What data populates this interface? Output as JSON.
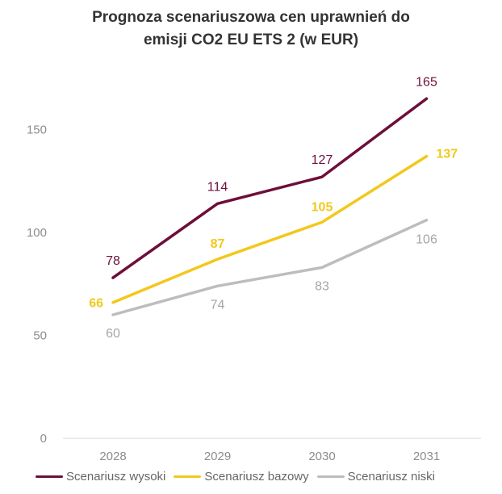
{
  "chart_data": {
    "type": "line",
    "title_lines": [
      "Prognoza scenariuszowa cen uprawnień do",
      "emisji CO2 EU ETS 2 (w EUR)"
    ],
    "categories": [
      "2028",
      "2029",
      "2030",
      "2031"
    ],
    "ylim": [
      0,
      175
    ],
    "yticks": [
      0,
      50,
      100,
      150
    ],
    "xlabel": "",
    "ylabel": "",
    "series": [
      {
        "name": "Scenariusz wysoki",
        "color": "#6e0e3a",
        "label_bold": false,
        "label_pos": "above",
        "values": [
          78,
          114,
          127,
          165
        ]
      },
      {
        "name": "Scenariusz bazowy",
        "color": "#f2c81c",
        "label_bold": true,
        "label_pos": "mixed",
        "values": [
          66,
          87,
          105,
          137
        ]
      },
      {
        "name": "Scenariusz niski",
        "color": "#bdbdbd",
        "label_bold": false,
        "label_pos": "below",
        "values": [
          60,
          74,
          83,
          106
        ]
      }
    ],
    "legend_position": "bottom-left",
    "grid": false
  }
}
